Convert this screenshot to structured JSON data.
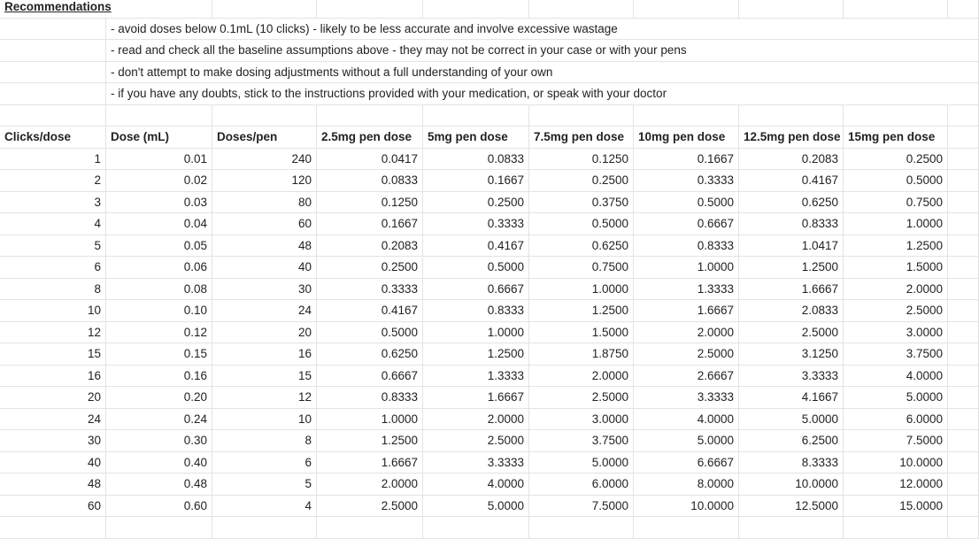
{
  "recommendations": {
    "title": "Recommendations",
    "items": [
      "- avoid doses below 0.1mL (10 clicks) - likely to be less accurate and involve excessive wastage",
      "- read and check all the baseline assumptions above - they may not be correct in your case or with your pens",
      "- don't attempt to make dosing adjustments without a full understanding of your own",
      "- if you have any doubts, stick to the instructions provided with your medication, or speak with your doctor"
    ]
  },
  "table": {
    "headers": [
      "Clicks/dose",
      "Dose (mL)",
      "Doses/pen",
      "2.5mg pen dose",
      "5mg pen dose",
      "7.5mg pen dose",
      "10mg pen dose",
      "12.5mg pen dose",
      "15mg pen dose"
    ],
    "rows": [
      [
        "1",
        "0.01",
        "240",
        "0.0417",
        "0.0833",
        "0.1250",
        "0.1667",
        "0.2083",
        "0.2500"
      ],
      [
        "2",
        "0.02",
        "120",
        "0.0833",
        "0.1667",
        "0.2500",
        "0.3333",
        "0.4167",
        "0.5000"
      ],
      [
        "3",
        "0.03",
        "80",
        "0.1250",
        "0.2500",
        "0.3750",
        "0.5000",
        "0.6250",
        "0.7500"
      ],
      [
        "4",
        "0.04",
        "60",
        "0.1667",
        "0.3333",
        "0.5000",
        "0.6667",
        "0.8333",
        "1.0000"
      ],
      [
        "5",
        "0.05",
        "48",
        "0.2083",
        "0.4167",
        "0.6250",
        "0.8333",
        "1.0417",
        "1.2500"
      ],
      [
        "6",
        "0.06",
        "40",
        "0.2500",
        "0.5000",
        "0.7500",
        "1.0000",
        "1.2500",
        "1.5000"
      ],
      [
        "8",
        "0.08",
        "30",
        "0.3333",
        "0.6667",
        "1.0000",
        "1.3333",
        "1.6667",
        "2.0000"
      ],
      [
        "10",
        "0.10",
        "24",
        "0.4167",
        "0.8333",
        "1.2500",
        "1.6667",
        "2.0833",
        "2.5000"
      ],
      [
        "12",
        "0.12",
        "20",
        "0.5000",
        "1.0000",
        "1.5000",
        "2.0000",
        "2.5000",
        "3.0000"
      ],
      [
        "15",
        "0.15",
        "16",
        "0.6250",
        "1.2500",
        "1.8750",
        "2.5000",
        "3.1250",
        "3.7500"
      ],
      [
        "16",
        "0.16",
        "15",
        "0.6667",
        "1.3333",
        "2.0000",
        "2.6667",
        "3.3333",
        "4.0000"
      ],
      [
        "20",
        "0.20",
        "12",
        "0.8333",
        "1.6667",
        "2.5000",
        "3.3333",
        "4.1667",
        "5.0000"
      ],
      [
        "24",
        "0.24",
        "10",
        "1.0000",
        "2.0000",
        "3.0000",
        "4.0000",
        "5.0000",
        "6.0000"
      ],
      [
        "30",
        "0.30",
        "8",
        "1.2500",
        "2.5000",
        "3.7500",
        "5.0000",
        "6.2500",
        "7.5000"
      ],
      [
        "40",
        "0.40",
        "6",
        "1.6667",
        "3.3333",
        "5.0000",
        "6.6667",
        "8.3333",
        "10.0000"
      ],
      [
        "48",
        "0.48",
        "5",
        "2.0000",
        "4.0000",
        "6.0000",
        "8.0000",
        "10.0000",
        "12.0000"
      ],
      [
        "60",
        "0.60",
        "4",
        "2.5000",
        "5.0000",
        "7.5000",
        "10.0000",
        "12.5000",
        "15.0000"
      ]
    ]
  }
}
